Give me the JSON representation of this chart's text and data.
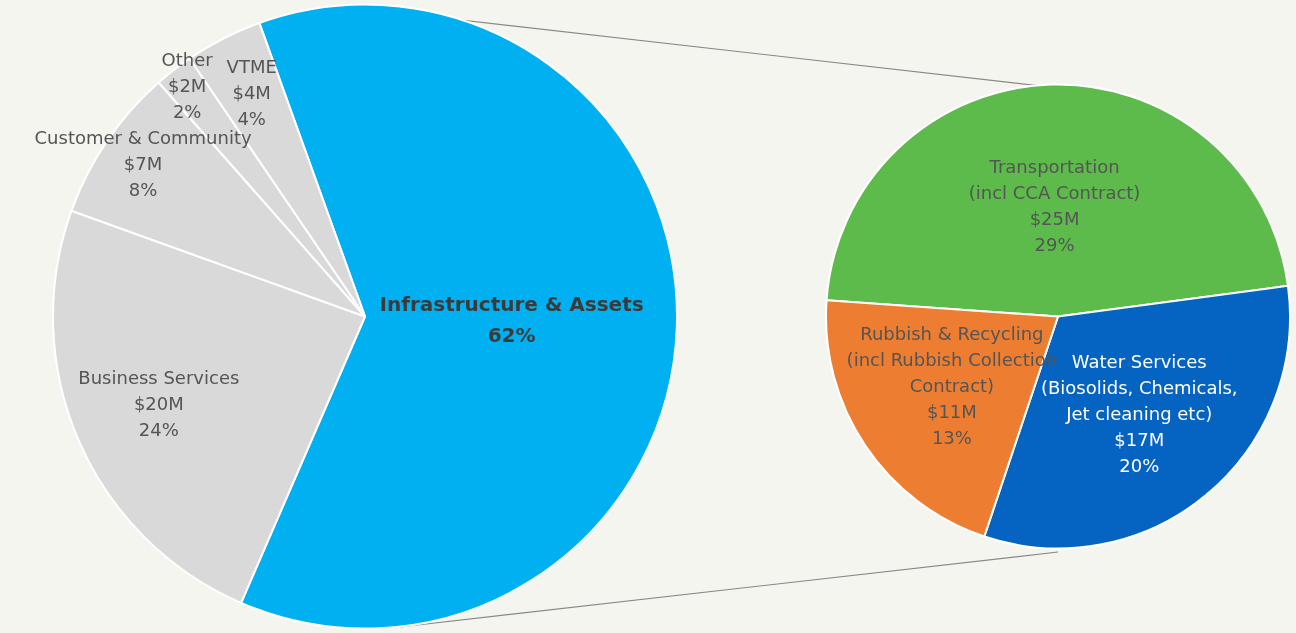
{
  "chart_data": [
    {
      "type": "pie",
      "categories": [
        "Infrastructure & Assets",
        "Business Services",
        "Customer & Community",
        "Other",
        "VTME"
      ],
      "values": [
        62,
        24,
        8,
        2,
        4
      ],
      "value_labels": [
        "62%",
        "$20M\n24%",
        "$7M\n8%",
        "$2M\n2%",
        "$4M\n4%"
      ],
      "colors": [
        "#00b0f0",
        "#d9d9d9",
        "#d9d9d9",
        "#d9d9d9",
        "#d9d9d9"
      ]
    },
    {
      "type": "pie",
      "categories": [
        "Transportation\n(incl CCA Contract)",
        "Water Services\n(Biosolids, Chemicals,\nJet cleaning etc)",
        "Rubbish & Recycling\n(incl Rubbish Collection\nContract)"
      ],
      "values": [
        29,
        20,
        13
      ],
      "value_labels": [
        "$25M\n29%",
        "$17M\n20%",
        "$11M\n13%"
      ],
      "colors": [
        "#5dbb4b",
        "#0563c1",
        "#ed7d31"
      ]
    }
  ]
}
